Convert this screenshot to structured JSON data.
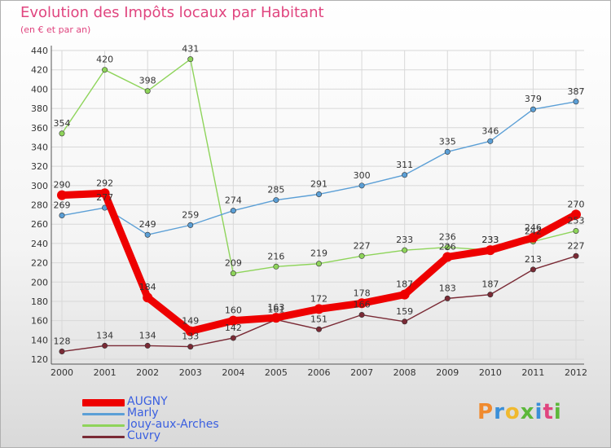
{
  "title": "Evolution des Impôts locaux par Habitant",
  "subtitle": "(en € et par an)",
  "logo": {
    "text": "Proxiti",
    "letters": [
      "P",
      "r",
      "o",
      "x",
      "i",
      "t",
      "i"
    ],
    "colors": [
      "#f08a2e",
      "#3a8fd8",
      "#f0b92e",
      "#5cb83a",
      "#3a8fd8",
      "#e0457f",
      "#5cb83a"
    ]
  },
  "chart_data": {
    "type": "line",
    "title": "Evolution des Impôts locaux par Habitant",
    "subtitle": "(en € et par an)",
    "x": [
      "2000",
      "2001",
      "2002",
      "2003",
      "2004",
      "2005",
      "2006",
      "2007",
      "2008",
      "2009",
      "2010",
      "2011",
      "2012"
    ],
    "y_ticks": [
      120,
      140,
      160,
      180,
      200,
      220,
      240,
      260,
      280,
      300,
      320,
      340,
      360,
      380,
      400,
      420,
      440
    ],
    "ylim": [
      120,
      440
    ],
    "grid": true,
    "legend_position": "bottom-left",
    "series": [
      {
        "name": "Cuvry",
        "color": "#7a2a35",
        "values": [
          128,
          134,
          134,
          133,
          142,
          161,
          151,
          166,
          159,
          183,
          187,
          213,
          227
        ],
        "labels": [
          "128",
          "134",
          "134",
          "133",
          "142",
          "161",
          "151",
          "166",
          "159",
          "183",
          "187",
          "213",
          "227"
        ]
      },
      {
        "name": "Jouy-aux-Arches",
        "color": "#8ed45a",
        "values": [
          354,
          420,
          398,
          431,
          209,
          216,
          219,
          227,
          233,
          236,
          233,
          242,
          253
        ],
        "labels": [
          "354",
          "420",
          "398",
          "431",
          "209",
          "216",
          "219",
          "227",
          "233",
          "236",
          "233",
          "242",
          "253"
        ]
      },
      {
        "name": "Marly",
        "color": "#5b9fd6",
        "values": [
          269,
          277,
          249,
          259,
          274,
          285,
          291,
          300,
          311,
          335,
          346,
          379,
          387
        ],
        "labels": [
          "269",
          "277",
          "249",
          "259",
          "274",
          "285",
          "291",
          "300",
          "311",
          "335",
          "346",
          "379",
          "387"
        ]
      },
      {
        "name": "AUGNY",
        "color": "#ee0000",
        "values": [
          290,
          292,
          184,
          149,
          160,
          163,
          172,
          178,
          187,
          226,
          233,
          246,
          270
        ],
        "labels": [
          "290",
          "292",
          "184",
          "149",
          "160",
          "163",
          "172",
          "178",
          "187",
          "226",
          "233",
          "246",
          "270"
        ]
      }
    ],
    "legend": [
      {
        "name": "AUGNY",
        "color": "#ee0000"
      },
      {
        "name": "Marly",
        "color": "#5b9fd6"
      },
      {
        "name": "Jouy-aux-Arches",
        "color": "#8ed45a"
      },
      {
        "name": "Cuvry",
        "color": "#7a2a35"
      }
    ]
  }
}
